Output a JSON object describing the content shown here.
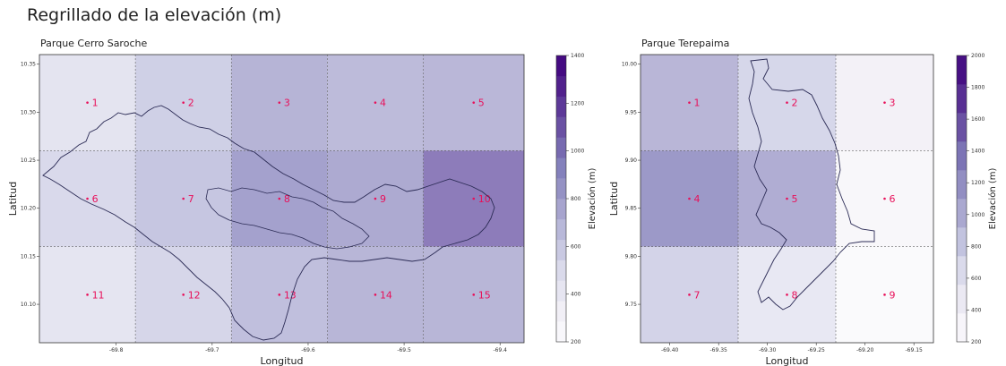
{
  "title": "Regrillado de la elevación (m)",
  "chart_data": [
    {
      "type": "heatmap",
      "title": "Parque Cerro Saroche",
      "xlabel": "Longitud",
      "ylabel": "Latitud",
      "colorbar_label": "Elevación (m)",
      "colormap": "Purples",
      "vmin": 200,
      "vmax": 1400,
      "colorbar_levels": 14,
      "colorbar_ticks": [
        "1400",
        "1200",
        "1000",
        "800",
        "600",
        "400",
        "200"
      ],
      "xlim": [
        -69.88,
        -69.375
      ],
      "ylim": [
        10.06,
        10.36
      ],
      "xticks": [
        "-69.8",
        "-69.7",
        "-69.6",
        "-69.5",
        "-69.4"
      ],
      "yticks": [
        "10.35",
        "10.30",
        "10.25",
        "10.20",
        "10.15",
        "10.10"
      ],
      "x_edges": [
        -69.88,
        -69.78,
        -69.68,
        -69.58,
        -69.48,
        -69.375
      ],
      "y_edges": [
        10.36,
        10.26,
        10.16,
        10.06
      ],
      "cells": [
        {
          "label": "1",
          "elevation": 480
        },
        {
          "label": "2",
          "elevation": 620
        },
        {
          "label": "3",
          "elevation": 780
        },
        {
          "label": "4",
          "elevation": 740
        },
        {
          "label": "5",
          "elevation": 760
        },
        {
          "label": "6",
          "elevation": 560
        },
        {
          "label": "7",
          "elevation": 680
        },
        {
          "label": "8",
          "elevation": 900
        },
        {
          "label": "9",
          "elevation": 840
        },
        {
          "label": "10",
          "elevation": 1080
        },
        {
          "label": "11",
          "elevation": 470
        },
        {
          "label": "12",
          "elevation": 580
        },
        {
          "label": "13",
          "elevation": 720
        },
        {
          "label": "14",
          "elevation": 770
        },
        {
          "label": "15",
          "elevation": 770
        }
      ]
    },
    {
      "type": "heatmap",
      "title": "Parque Terepaima",
      "xlabel": "Longitud",
      "ylabel": "Latitud",
      "colorbar_label": "Elevación (m)",
      "colormap": "Purples",
      "vmin": 200,
      "vmax": 2000,
      "colorbar_levels": 10,
      "colorbar_ticks": [
        "2000",
        "1800",
        "1600",
        "1400",
        "1200",
        "1000",
        "800",
        "600",
        "400",
        "200"
      ],
      "xlim": [
        -69.43,
        -69.13
      ],
      "ylim": [
        9.71,
        10.01
      ],
      "xticks": [
        "-69.40",
        "-69.35",
        "-69.30",
        "-69.25",
        "-69.20",
        "-69.15"
      ],
      "yticks": [
        "10.00",
        "9.95",
        "9.90",
        "9.85",
        "9.80",
        "9.75"
      ],
      "x_edges": [
        -69.43,
        -69.33,
        -69.23,
        -69.13
      ],
      "y_edges": [
        10.01,
        9.91,
        9.81,
        9.71
      ],
      "cells": [
        {
          "label": "1",
          "elevation": 1050
        },
        {
          "label": "2",
          "elevation": 760
        },
        {
          "label": "3",
          "elevation": 420
        },
        {
          "label": "4",
          "elevation": 1330
        },
        {
          "label": "5",
          "elevation": 1130
        },
        {
          "label": "6",
          "elevation": 300
        },
        {
          "label": "7",
          "elevation": 800
        },
        {
          "label": "8",
          "elevation": 560
        },
        {
          "label": "9",
          "elevation": 250
        }
      ]
    }
  ]
}
